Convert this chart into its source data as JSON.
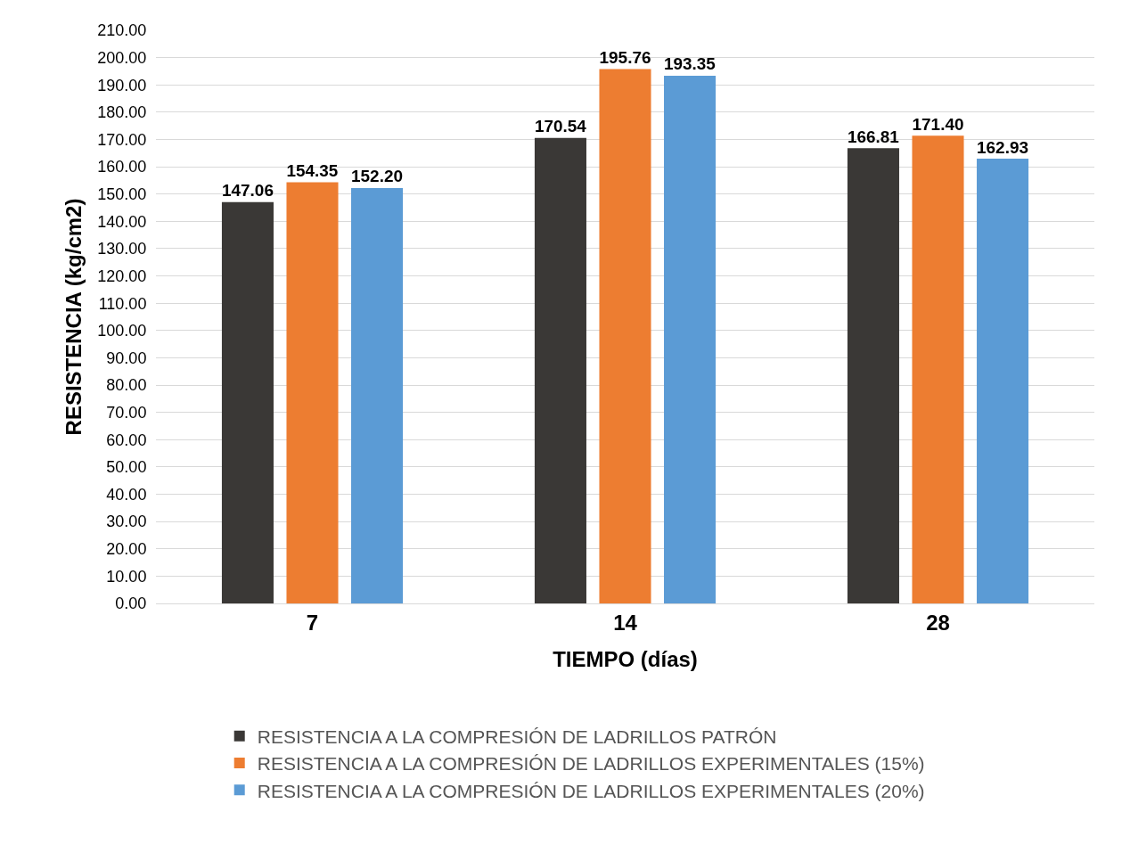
{
  "chart_data": {
    "type": "bar",
    "xlabel": "TIEMPO (días)",
    "ylabel": "RESISTENCIA (kg/cm2)",
    "categories": [
      "7",
      "14",
      "28"
    ],
    "series": [
      {
        "name": "RESISTENCIA A LA COMPRESIÓN DE LADRILLOS PATRÓN",
        "color": "#3a3836",
        "values": [
          147.06,
          170.54,
          166.81
        ],
        "value_labels": [
          "147.06",
          "170.54",
          "166.81"
        ]
      },
      {
        "name": "RESISTENCIA A LA COMPRESIÓN DE LADRILLOS EXPERIMENTALES (15%)",
        "color": "#ed7d31",
        "values": [
          154.35,
          195.76,
          171.4
        ],
        "value_labels": [
          "154.35",
          "195.76",
          "171.40"
        ]
      },
      {
        "name": "RESISTENCIA A LA COMPRESIÓN DE LADRILLOS EXPERIMENTALES (20%)",
        "color": "#5b9bd5",
        "values": [
          152.2,
          193.35,
          162.93
        ],
        "value_labels": [
          "152.20",
          "193.35",
          "162.93"
        ]
      }
    ],
    "ylim": [
      0,
      210
    ],
    "yticks": [
      {
        "value": 0,
        "label": "0.00"
      },
      {
        "value": 10,
        "label": "10.00"
      },
      {
        "value": 20,
        "label": "20.00"
      },
      {
        "value": 30,
        "label": "30.00"
      },
      {
        "value": 40,
        "label": "40.00"
      },
      {
        "value": 50,
        "label": "50.00"
      },
      {
        "value": 60,
        "label": "60.00"
      },
      {
        "value": 70,
        "label": "70.00"
      },
      {
        "value": 80,
        "label": "80.00"
      },
      {
        "value": 90,
        "label": "90.00"
      },
      {
        "value": 100,
        "label": "100.00"
      },
      {
        "value": 110,
        "label": "110.00"
      },
      {
        "value": 120,
        "label": "120.00"
      },
      {
        "value": 130,
        "label": "130.00"
      },
      {
        "value": 140,
        "label": "140.00"
      },
      {
        "value": 150,
        "label": "150.00"
      },
      {
        "value": 160,
        "label": "160.00"
      },
      {
        "value": 170,
        "label": "170.00"
      },
      {
        "value": 180,
        "label": "180.00"
      },
      {
        "value": 190,
        "label": "190.00"
      },
      {
        "value": 200,
        "label": "200.00"
      },
      {
        "value": 210,
        "label": "210.00"
      }
    ],
    "grid": "y",
    "legend": "bottom"
  }
}
